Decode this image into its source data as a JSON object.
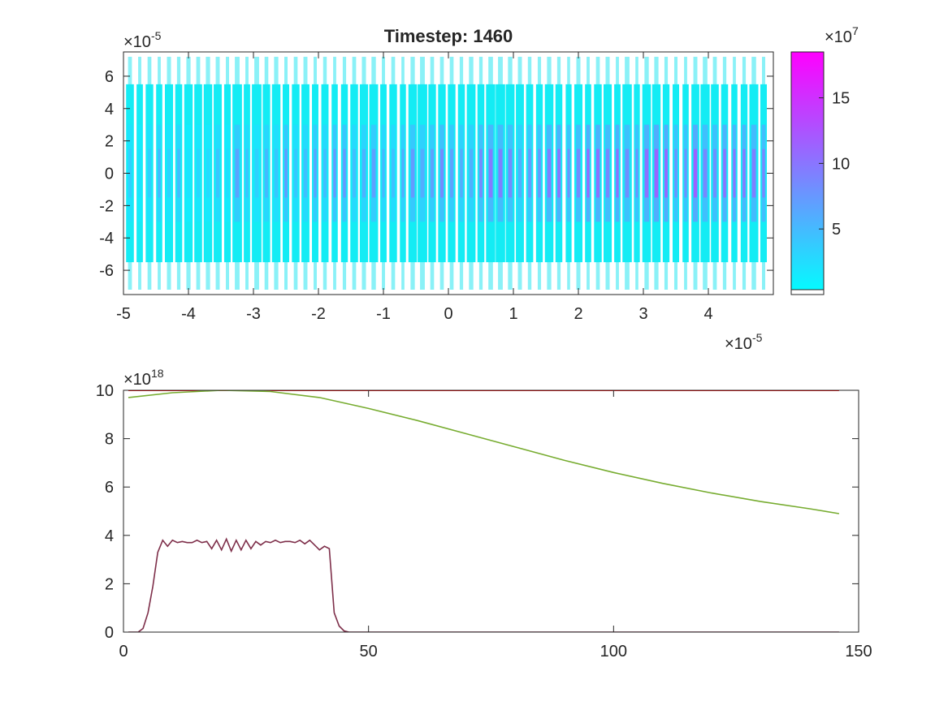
{
  "figure": {
    "background": "#ffffff"
  },
  "chart_data": [
    {
      "type": "scatter",
      "title": "Timestep: 1460",
      "xlabel": "",
      "ylabel": "",
      "xlim": [
        -5e-05,
        5e-05
      ],
      "ylim": [
        -7.5e-05,
        7.5e-05
      ],
      "x_ticks": [
        -5,
        -4,
        -3,
        -2,
        -1,
        0,
        1,
        2,
        3,
        4
      ],
      "y_ticks": [
        -6,
        -4,
        -2,
        0,
        2,
        4,
        6
      ],
      "x_exponent_base": "×10",
      "x_exponent_power": "-5",
      "y_exponent_base": "×10",
      "y_exponent_power": "-5",
      "grid": false,
      "description_note": "",
      "particles": {
        "x_range": [
          -4.95e-05,
          4.95e-05
        ],
        "core_y_half_width": 5.5e-05,
        "halo_y_half_width": 7.2e-05,
        "band_centers_x": [
          -4.9,
          -4.75,
          -4.6,
          -4.45,
          -4.3,
          -4.15,
          -4.0,
          -3.85,
          -3.7,
          -3.55,
          -3.4,
          -3.25,
          -3.1,
          -2.95,
          -2.8,
          -2.65,
          -2.5,
          -2.35,
          -2.2,
          -2.05,
          -1.9,
          -1.75,
          -1.6,
          -1.45,
          -1.3,
          -1.15,
          -1.0,
          -0.85,
          -0.7,
          -0.55,
          -0.4,
          -0.25,
          -0.1,
          0.05,
          0.2,
          0.35,
          0.5,
          0.65,
          0.8,
          0.95,
          1.1,
          1.25,
          1.4,
          1.55,
          1.7,
          1.85,
          2.0,
          2.15,
          2.3,
          2.45,
          2.6,
          2.75,
          2.9,
          3.05,
          3.2,
          3.35,
          3.5,
          3.65,
          3.8,
          3.95,
          4.1,
          4.25,
          4.4,
          4.55,
          4.7,
          4.85
        ]
      },
      "colorbar": {
        "clim": [
          0,
          185000000.0
        ],
        "ticks": [
          5,
          10,
          15
        ],
        "exponent_base": "×10",
        "exponent_power": "7",
        "colormap": [
          "#00ffff",
          "#ff00ff"
        ]
      }
    },
    {
      "type": "line",
      "title": "",
      "xlabel": "",
      "ylabel": "",
      "xlim": [
        0,
        150
      ],
      "ylim": [
        0,
        1e+19
      ],
      "x_ticks": [
        0,
        50,
        100,
        150
      ],
      "y_ticks": [
        0,
        2,
        4,
        6,
        8,
        10
      ],
      "y_exponent_base": "×10",
      "y_exponent_power": "18",
      "grid": false,
      "series": [
        {
          "color": "#ff0000",
          "x": [
            1,
            146
          ],
          "y": [
            10.0,
            10.0
          ]
        },
        {
          "color": "#77ac30",
          "x": [
            1,
            10,
            20,
            30,
            40,
            50,
            60,
            70,
            80,
            90,
            100,
            110,
            120,
            130,
            140,
            146
          ],
          "y": [
            9.7,
            9.9,
            10.0,
            9.95,
            9.7,
            9.25,
            8.75,
            8.2,
            7.65,
            7.1,
            6.6,
            6.15,
            5.75,
            5.4,
            5.1,
            4.9
          ]
        },
        {
          "color": "#7e2f4a",
          "x": [
            1,
            3,
            4,
            5,
            6,
            7,
            8,
            9,
            10,
            11,
            12,
            13,
            14,
            15,
            16,
            17,
            18,
            19,
            20,
            21,
            22,
            23,
            24,
            25,
            26,
            27,
            28,
            29,
            30,
            31,
            32,
            33,
            34,
            35,
            36,
            37,
            38,
            39,
            40,
            41,
            42,
            43,
            44,
            45,
            46,
            48,
            146
          ],
          "y": [
            0,
            0,
            0.15,
            0.8,
            1.9,
            3.3,
            3.8,
            3.55,
            3.8,
            3.7,
            3.75,
            3.7,
            3.7,
            3.8,
            3.7,
            3.75,
            3.45,
            3.8,
            3.4,
            3.85,
            3.35,
            3.8,
            3.4,
            3.8,
            3.45,
            3.75,
            3.6,
            3.75,
            3.7,
            3.8,
            3.7,
            3.75,
            3.75,
            3.7,
            3.8,
            3.65,
            3.8,
            3.6,
            3.4,
            3.55,
            3.45,
            0.8,
            0.25,
            0.05,
            0,
            0,
            0
          ]
        }
      ]
    }
  ]
}
